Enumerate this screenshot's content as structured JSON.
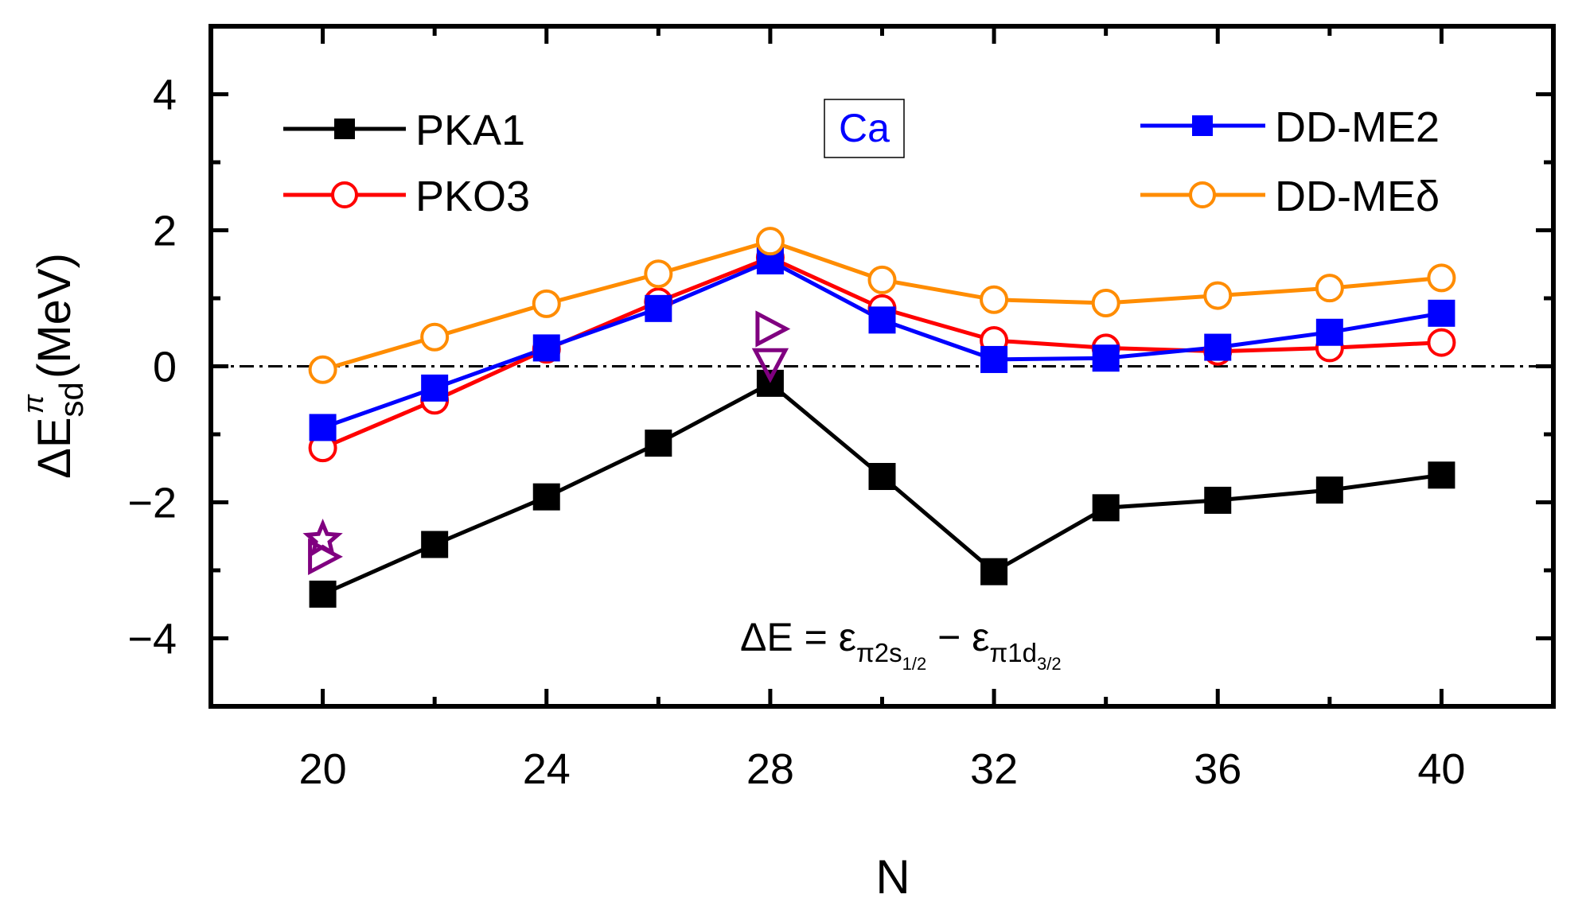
{
  "chart_data": {
    "type": "line",
    "title": "",
    "panel_label": "Ca",
    "xlabel": "N",
    "ylabel": {
      "base": "ΔE",
      "superscript": "π",
      "subscript": "sd",
      "unit": "(MeV)"
    },
    "xlim": [
      18,
      42
    ],
    "ylim": [
      -5,
      5
    ],
    "xticks": [
      20,
      24,
      28,
      32,
      36,
      40
    ],
    "yticks": [
      -4,
      -2,
      0,
      2,
      4
    ],
    "reference_line_y": 0,
    "legend_position": "top (split left and right)",
    "annotation": {
      "lhs": "ΔE = ε",
      "sub1": "π2s",
      "subsub1": "1/2",
      "minus": " − ε",
      "sub2": "π1d",
      "subsub2": "3/2"
    },
    "series": [
      {
        "name": "PKA1",
        "color": "#000000",
        "marker": "filled-square",
        "x": [
          20,
          22,
          24,
          26,
          28,
          30,
          32,
          34,
          36,
          38,
          40
        ],
        "y": [
          -3.35,
          -2.62,
          -1.92,
          -1.13,
          -0.25,
          -1.62,
          -3.02,
          -2.08,
          -1.97,
          -1.82,
          -1.6
        ]
      },
      {
        "name": "PKO3",
        "color": "#ff0000",
        "marker": "open-circle",
        "x": [
          20,
          22,
          24,
          26,
          28,
          30,
          32,
          34,
          36,
          38,
          40
        ],
        "y": [
          -1.2,
          -0.5,
          0.25,
          0.95,
          1.6,
          0.85,
          0.38,
          0.27,
          0.22,
          0.27,
          0.35
        ]
      },
      {
        "name": "DD-ME2",
        "color": "#0000ff",
        "marker": "filled-square",
        "x": [
          20,
          22,
          24,
          26,
          28,
          30,
          32,
          34,
          36,
          38,
          40
        ],
        "y": [
          -0.9,
          -0.32,
          0.27,
          0.85,
          1.55,
          0.68,
          0.1,
          0.12,
          0.28,
          0.5,
          0.78
        ]
      },
      {
        "name": "DD-MEδ",
        "color": "#ff8c00",
        "marker": "open-circle",
        "x": [
          20,
          22,
          24,
          26,
          28,
          30,
          32,
          34,
          36,
          38,
          40
        ],
        "y": [
          -0.05,
          0.43,
          0.92,
          1.36,
          1.84,
          1.27,
          0.98,
          0.93,
          1.04,
          1.15,
          1.3
        ]
      },
      {
        "name": "experiment-right-triangle",
        "color": "#800080",
        "marker": "open-right-triangle",
        "x": [
          20,
          28
        ],
        "y": [
          -2.8,
          0.55
        ]
      },
      {
        "name": "experiment-down-triangle",
        "color": "#800080",
        "marker": "open-down-triangle",
        "x": [
          28
        ],
        "y": [
          0.05
        ]
      },
      {
        "name": "experiment-star",
        "color": "#800080",
        "marker": "open-star",
        "x": [
          20
        ],
        "y": [
          -2.55
        ]
      }
    ]
  }
}
